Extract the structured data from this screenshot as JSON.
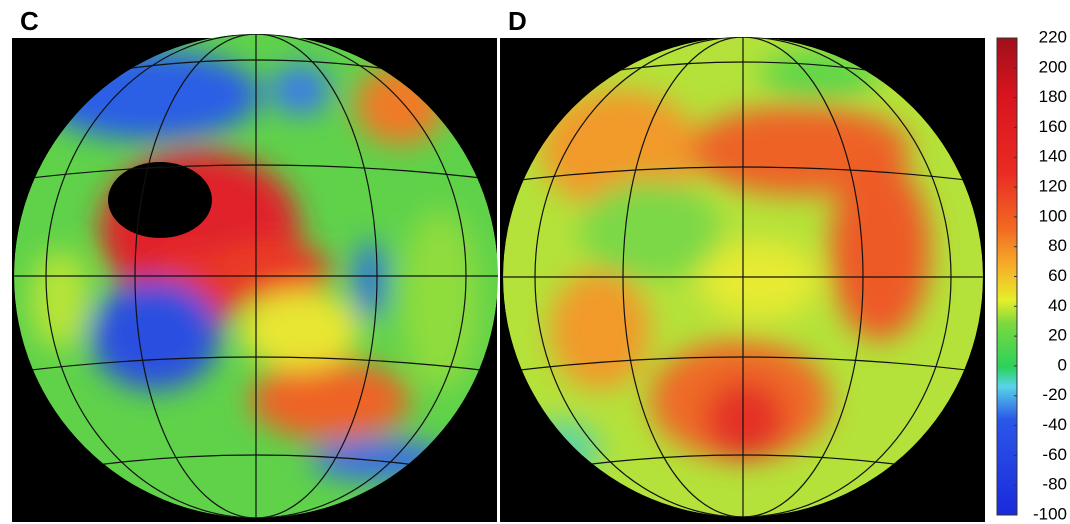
{
  "chart_data": {
    "type": "map",
    "panels": [
      "C",
      "D"
    ],
    "ylim": [
      -100,
      220
    ],
    "yticks": [
      -100,
      -80,
      -60,
      -40,
      -20,
      0,
      20,
      40,
      60,
      80,
      100,
      120,
      140,
      160,
      180,
      200,
      220
    ]
  }
}
